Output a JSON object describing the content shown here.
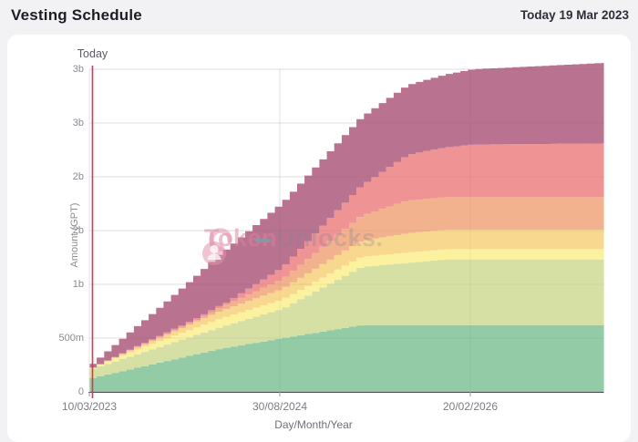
{
  "header": {
    "title": "Vesting Schedule",
    "today_date": "Today 19 Mar 2023"
  },
  "axes": {
    "y_title": "Amount (GPT)",
    "x_title": "Day/Month/Year"
  },
  "today_marker": {
    "label": "Today",
    "t_days": 9,
    "color": "#e13350"
  },
  "watermark": {
    "icon": "unlock-padlock-icon",
    "text_bold": "Token",
    "text_light": "Unlocks."
  },
  "colors": {
    "page_bg": "#f2f2f4",
    "card_bg": "#ffffff",
    "grid": "#ececef",
    "axis_line": "#4a4a52",
    "tick": "#9a9aa2"
  },
  "chart_data": {
    "type": "area",
    "stacked": true,
    "step": true,
    "title": "Vesting Schedule",
    "xlabel": "Day/Month/Year",
    "ylabel": "Amount (GPT)",
    "unit": "million GPT",
    "x_unit": "days since 10/03/2023",
    "x_max_days": 1456,
    "step_days": 21,
    "y_max": 3000,
    "x_ticks": [
      {
        "t": 0,
        "label": "10/03/2023"
      },
      {
        "t": 539,
        "label": "30/08/2024"
      },
      {
        "t": 1078,
        "label": "20/02/2026"
      }
    ],
    "y_ticks": [
      {
        "v": 0,
        "label": "0"
      },
      {
        "v": 500,
        "label": "500m"
      },
      {
        "v": 1000,
        "label": "1b"
      },
      {
        "v": 1500,
        "label": "2b"
      },
      {
        "v": 2000,
        "label": "2b"
      },
      {
        "v": 2500,
        "label": "3b"
      },
      {
        "v": 3000,
        "label": "3b"
      }
    ],
    "legend": "none",
    "series": [
      {
        "name": "allocation-green",
        "color": "#92cba6",
        "breakpoints": [
          [
            0,
            130
          ],
          [
            360,
            400
          ],
          [
            539,
            500
          ],
          [
            760,
            620
          ],
          [
            1456,
            620
          ]
        ]
      },
      {
        "name": "allocation-olive",
        "color": "#d6e0a5",
        "breakpoints": [
          [
            0,
            85
          ],
          [
            360,
            200
          ],
          [
            539,
            275
          ],
          [
            760,
            540
          ],
          [
            1000,
            612
          ],
          [
            1456,
            612
          ]
        ]
      },
      {
        "name": "allocation-pale-yellow",
        "color": "#fbf19e",
        "breakpoints": [
          [
            0,
            10
          ],
          [
            120,
            45
          ],
          [
            360,
            80
          ],
          [
            539,
            86
          ],
          [
            720,
            95
          ],
          [
            1456,
            95
          ]
        ]
      },
      {
        "name": "allocation-yellow",
        "color": "#f8d78f",
        "breakpoints": [
          [
            0,
            0
          ],
          [
            150,
            20
          ],
          [
            360,
            70
          ],
          [
            539,
            100
          ],
          [
            760,
            150
          ],
          [
            900,
            181
          ],
          [
            1456,
            181
          ]
        ]
      },
      {
        "name": "allocation-peach",
        "color": "#f3b28e",
        "breakpoints": [
          [
            0,
            0
          ],
          [
            300,
            15
          ],
          [
            539,
            90
          ],
          [
            760,
            230
          ],
          [
            880,
            302
          ],
          [
            1456,
            302
          ]
        ]
      },
      {
        "name": "allocation-salmon",
        "color": "#f09394",
        "breakpoints": [
          [
            0,
            0
          ],
          [
            380,
            20
          ],
          [
            539,
            110
          ],
          [
            760,
            280
          ],
          [
            900,
            430
          ],
          [
            1078,
            490
          ],
          [
            1456,
            500
          ]
        ]
      },
      {
        "name": "allocation-maroon",
        "color": "#b97390",
        "breakpoints": [
          [
            0,
            35
          ],
          [
            180,
            250
          ],
          [
            360,
            480
          ],
          [
            539,
            600
          ],
          [
            760,
            635
          ],
          [
            900,
            650
          ],
          [
            1078,
            700
          ],
          [
            1456,
            750
          ]
        ]
      }
    ]
  }
}
